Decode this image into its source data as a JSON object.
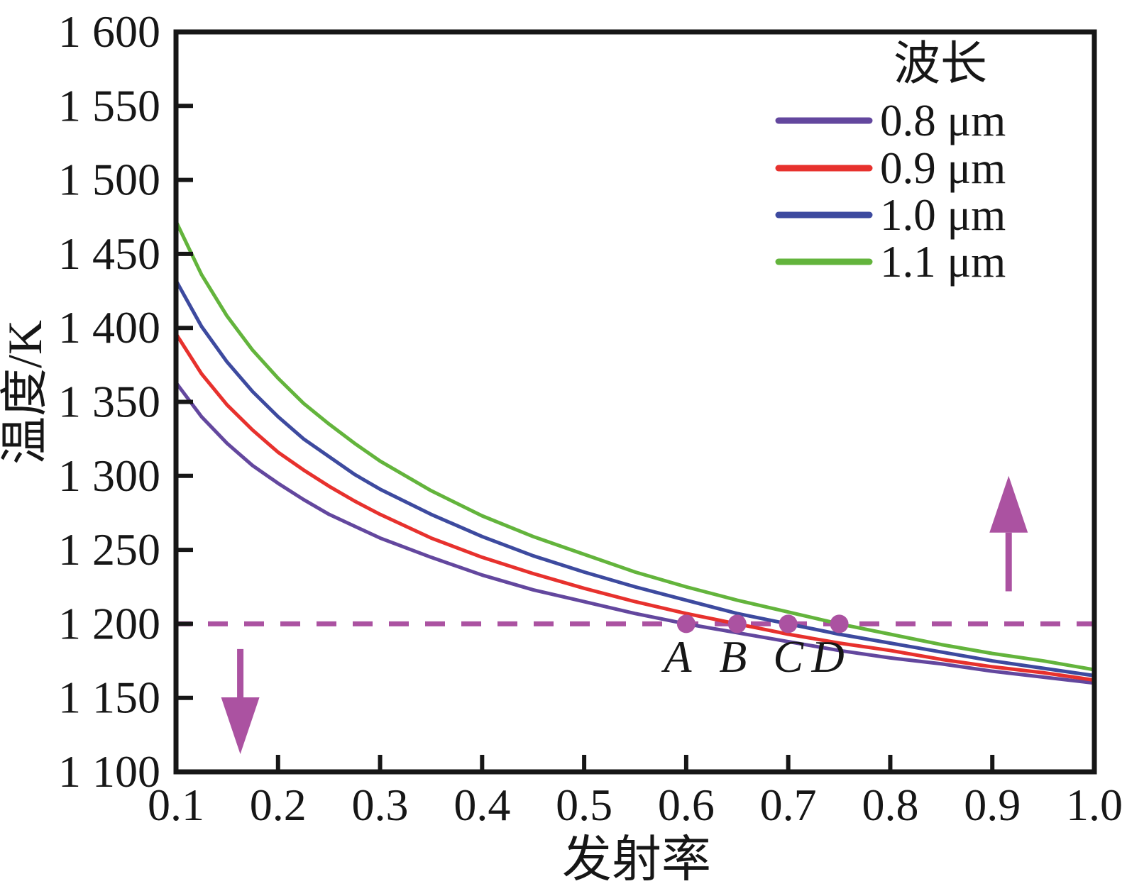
{
  "chart_data": {
    "type": "line",
    "title": "",
    "xlabel": "发射率",
    "ylabel": "温度/K",
    "xlim": [
      0.1,
      1.0
    ],
    "ylim": [
      1100,
      1600
    ],
    "grid": false,
    "background": "#ffffff",
    "frame_color": "#161616",
    "xticks": {
      "values": [
        0.1,
        0.2,
        0.3,
        0.4,
        0.5,
        0.6,
        0.7,
        0.8,
        0.9,
        1.0
      ],
      "labels": [
        "0.1",
        "0.2",
        "0.3",
        "0.4",
        "0.5",
        "0.6",
        "0.7",
        "0.8",
        "0.9",
        "1.0"
      ]
    },
    "yticks": {
      "values": [
        1100,
        1150,
        1200,
        1250,
        1300,
        1350,
        1400,
        1450,
        1500,
        1550,
        1600
      ],
      "labels": [
        "1 100",
        "1 150",
        "1 200",
        "1 250",
        "1 300",
        "1 350",
        "1 400",
        "1 450",
        "1 500",
        "1 550",
        "1 600"
      ]
    },
    "legend": {
      "title": "波长",
      "position": "top-right"
    },
    "x": [
      0.1,
      0.125,
      0.15,
      0.175,
      0.2,
      0.225,
      0.25,
      0.275,
      0.3,
      0.35,
      0.4,
      0.45,
      0.5,
      0.55,
      0.6,
      0.65,
      0.7,
      0.75,
      0.8,
      0.85,
      0.9,
      0.95,
      1.0
    ],
    "series": [
      {
        "name": "0.8 μm",
        "color": "#63479e",
        "values": [
          1363,
          1340,
          1322,
          1307,
          1295,
          1284,
          1274,
          1266,
          1258,
          1245,
          1233,
          1223,
          1215,
          1207,
          1200,
          1194,
          1188,
          1182,
          1177,
          1173,
          1168,
          1164,
          1160
        ]
      },
      {
        "name": "0.9 μm",
        "color": "#e7312d",
        "values": [
          1396,
          1369,
          1348,
          1331,
          1316,
          1304,
          1293,
          1283,
          1274,
          1258,
          1245,
          1234,
          1224,
          1215,
          1207,
          1200,
          1193,
          1187,
          1182,
          1176,
          1171,
          1167,
          1162
        ]
      },
      {
        "name": "1.0 μm",
        "color": "#3d4a9f",
        "values": [
          1432,
          1401,
          1377,
          1357,
          1340,
          1325,
          1313,
          1301,
          1291,
          1274,
          1259,
          1246,
          1235,
          1225,
          1216,
          1207,
          1200,
          1193,
          1187,
          1181,
          1175,
          1170,
          1165
        ]
      },
      {
        "name": "1.1 μm",
        "color": "#63b43c",
        "values": [
          1472,
          1436,
          1408,
          1385,
          1366,
          1349,
          1335,
          1322,
          1310,
          1290,
          1273,
          1259,
          1247,
          1235,
          1225,
          1216,
          1208,
          1200,
          1193,
          1186,
          1180,
          1175,
          1169
        ]
      }
    ],
    "annotations": {
      "marker_color": "#ab52a1",
      "reference_line": {
        "y": 1200,
        "color": "#ab52a1",
        "style": "dashed"
      },
      "points": [
        {
          "label": "A",
          "x": 0.6,
          "y": 1200
        },
        {
          "label": "B",
          "x": 0.65,
          "y": 1200
        },
        {
          "label": "C",
          "x": 0.7,
          "y": 1200
        },
        {
          "label": "D",
          "x": 0.75,
          "y": 1200
        }
      ],
      "arrows": [
        {
          "direction": "down",
          "x": 0.163,
          "y_from": 1183,
          "y_to": 1112
        },
        {
          "direction": "up",
          "x": 0.916,
          "y_from": 1222,
          "y_to": 1300
        }
      ]
    }
  }
}
